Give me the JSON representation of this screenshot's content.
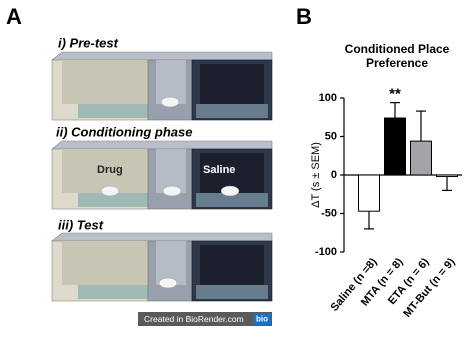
{
  "panel_a": {
    "label": "A",
    "scenes": [
      {
        "title": "i) Pre-test"
      },
      {
        "title": "ii) Conditioning phase",
        "left_label": "Drug",
        "right_label": "Saline"
      },
      {
        "title": "iii) Test"
      }
    ],
    "credit": "Created in BioRender.com",
    "credit_logo": "bio"
  },
  "panel_b_label": "B",
  "chart_data": {
    "type": "bar",
    "title": "Conditioned Place Preference",
    "y_label": "ΔT (s ± SEM)",
    "categories": [
      "Saline (n =8)",
      "MTA (n = 8)",
      "ETA (n = 6)",
      "MT-But (n = 9)"
    ],
    "values": [
      -47,
      74,
      44,
      -2
    ],
    "errors": [
      23,
      20,
      39,
      18
    ],
    "colors": [
      "#ffffff",
      "#000000",
      "#a3a3aa",
      "#ffffff"
    ],
    "ylim": [
      -100,
      100
    ],
    "yticks": [
      -100,
      -50,
      0,
      50,
      100
    ],
    "annotation": "**"
  }
}
